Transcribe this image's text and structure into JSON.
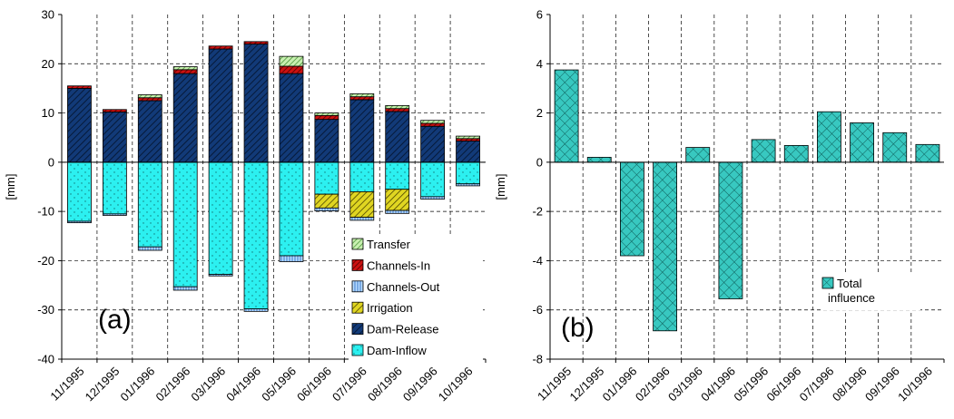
{
  "chart_data": [
    {
      "type": "bar",
      "stacked": true,
      "panel_label": "(a)",
      "ylabel": "[mm]",
      "ylim": [
        -40,
        30
      ],
      "yticks": [
        -40,
        -30,
        -20,
        -10,
        0,
        10,
        20,
        30
      ],
      "grid": true,
      "legend_position": "lower-right",
      "categories": [
        "11/1995",
        "12/1995",
        "01/1996",
        "02/1996",
        "03/1996",
        "04/1996",
        "05/1996",
        "06/1996",
        "07/1996",
        "08/1996",
        "09/1996",
        "10/1996"
      ],
      "series": [
        {
          "name": "Transfer",
          "color": "#b8e0a0",
          "pattern": "diag-green",
          "values": [
            0,
            0,
            0.6,
            0.6,
            0,
            0,
            2,
            0.5,
            0.6,
            0.6,
            0.6,
            0.5
          ]
        },
        {
          "name": "Channels-In",
          "color": "#cc1111",
          "pattern": "diag-red",
          "values": [
            0.5,
            0.5,
            0.6,
            0.8,
            0.6,
            0.5,
            1.5,
            0.8,
            0.6,
            0.6,
            0.6,
            0.5
          ]
        },
        {
          "name": "Channels-Out",
          "color": "#9ecfff",
          "pattern": "vert-blue",
          "values": [
            -0.3,
            -0.3,
            -0.7,
            -0.7,
            -0.3,
            -0.5,
            -1.2,
            -0.6,
            -0.6,
            -0.6,
            -0.5,
            -0.4
          ]
        },
        {
          "name": "Irrigation",
          "color": "#d8d022",
          "pattern": "diag-yellow",
          "values": [
            0,
            0,
            0,
            0,
            0,
            0,
            0,
            -2.8,
            -5.2,
            -4.3,
            0,
            0
          ]
        },
        {
          "name": "Dam-Release",
          "color": "#123a78",
          "pattern": "diag-navy",
          "values": [
            15,
            10.2,
            12.5,
            18,
            23,
            24,
            18,
            8.7,
            12.7,
            10.3,
            7.3,
            4.3
          ]
        },
        {
          "name": "Dam-Inflow",
          "color": "#2cf0f0",
          "pattern": "dots-cyan",
          "values": [
            -12,
            -10.5,
            -17.2,
            -25.3,
            -22.8,
            -29.8,
            -19,
            -6.5,
            -6,
            -5.5,
            -7,
            -4.4
          ]
        }
      ]
    },
    {
      "type": "bar",
      "panel_label": "(b)",
      "ylabel": "[mm]",
      "ylim": [
        -8,
        6
      ],
      "yticks": [
        -8,
        -6,
        -4,
        -2,
        0,
        2,
        4,
        6
      ],
      "grid": true,
      "legend_position": "lower-right",
      "categories": [
        "11/1995",
        "12/1995",
        "01/1996",
        "02/1996",
        "03/1996",
        "04/1996",
        "05/1996",
        "06/1996",
        "07/1996",
        "08/1996",
        "09/1996",
        "10/1996"
      ],
      "series": [
        {
          "name": "Total influence",
          "color": "#38c8c0",
          "pattern": "cross-teal",
          "values": [
            3.75,
            0.2,
            -3.8,
            -6.85,
            0.6,
            -5.55,
            0.92,
            0.68,
            2.05,
            1.6,
            1.2,
            0.72
          ]
        }
      ]
    }
  ]
}
